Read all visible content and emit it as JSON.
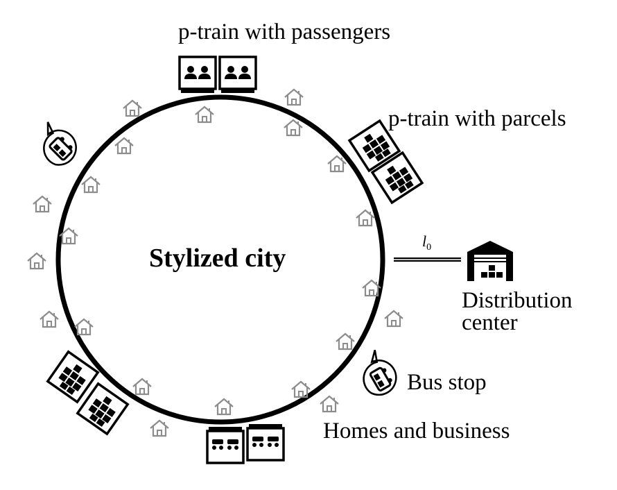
{
  "labels": {
    "city": "Stylized city",
    "ptrain_passengers": "p-train with passengers",
    "ptrain_parcels": "p-train with parcels",
    "distribution_center_line1": "Distribution",
    "distribution_center_line2": "center",
    "bus_stop": "Bus stop",
    "homes": "Homes and business",
    "link_symbol": "l",
    "link_subscript": "0"
  },
  "colors": {
    "ink": "#000000",
    "house": "#8c8c8c",
    "background": "#ffffff"
  },
  "icons": {
    "home": "house-outline-icon",
    "passenger_car": "two-passengers-icon",
    "parcel_car": "parcel-stack-icon",
    "seat_car": "seats-icon",
    "bus": "bus-icon",
    "warehouse": "warehouse-icon"
  }
}
